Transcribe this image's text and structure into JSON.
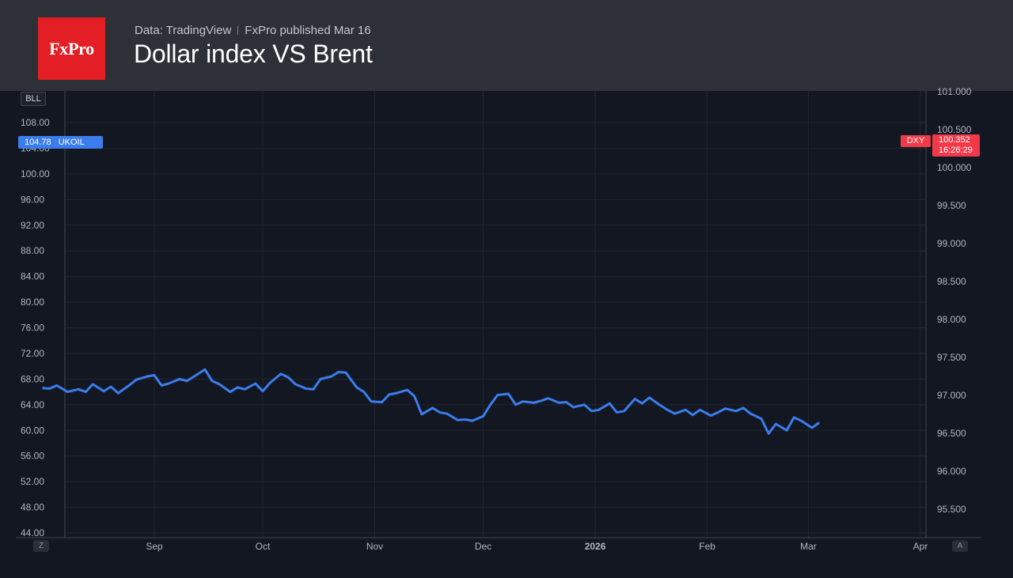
{
  "header": {
    "logo_text": "FxPro",
    "source": "Data: TradingView",
    "published": "FxPro published Mar 16",
    "title": "Dollar index VS Brent"
  },
  "badges": {
    "bll": "BLL",
    "z": "Z",
    "a": "A",
    "ukoil_price": "104.78",
    "ukoil_label": "UKOIL",
    "dxy_label": "DXY",
    "dxy_price": "100.352",
    "dxy_countdown": "16:26:29"
  },
  "colors": {
    "background": "#131722",
    "header_bg": "#2e3038",
    "logo_red": "#e31e24",
    "ukoil_blue": "#3b7ded",
    "dxy_red": "#f03a4a",
    "grid": "#232733"
  },
  "chart_data": {
    "type": "line",
    "date_range": [
      "2025-08-01",
      "2026-03-16"
    ],
    "x_ticks": [
      {
        "label": "Sep",
        "date": "2025-09-01"
      },
      {
        "label": "Oct",
        "date": "2025-10-01"
      },
      {
        "label": "Nov",
        "date": "2025-11-01"
      },
      {
        "label": "Dec",
        "date": "2025-12-01"
      },
      {
        "label": "2026",
        "date": "2026-01-01",
        "bold": true
      },
      {
        "label": "Feb",
        "date": "2026-02-01"
      },
      {
        "label": "Mar",
        "date": "2026-03-01"
      },
      {
        "label": "Apr",
        "date": "2026-04-01"
      }
    ],
    "left_axis": {
      "ticks": [
        "44.00",
        "48.00",
        "52.00",
        "56.00",
        "60.00",
        "64.00",
        "68.00",
        "72.00",
        "76.00",
        "80.00",
        "84.00",
        "88.00",
        "92.00",
        "96.00",
        "100.00",
        "104.00",
        "108.00"
      ],
      "range": [
        44,
        108
      ]
    },
    "right_axis": {
      "ticks": [
        "95.500",
        "96.000",
        "96.500",
        "97.000",
        "97.500",
        "98.000",
        "98.500",
        "99.000",
        "99.500",
        "100.000",
        "100.500",
        "101.000"
      ],
      "range": [
        95.5,
        101.0
      ]
    },
    "series": [
      {
        "name": "UKOIL",
        "axis": "left",
        "color": "#3b7ded",
        "points": [
          [
            "2025-08-01",
            66.6
          ],
          [
            "2025-08-03",
            66.5
          ],
          [
            "2025-08-05",
            67.0
          ],
          [
            "2025-08-08",
            66.0
          ],
          [
            "2025-08-11",
            66.4
          ],
          [
            "2025-08-13",
            66.0
          ],
          [
            "2025-08-15",
            67.2
          ],
          [
            "2025-08-18",
            66.1
          ],
          [
            "2025-08-20",
            66.8
          ],
          [
            "2025-08-22",
            65.8
          ],
          [
            "2025-08-25",
            67.0
          ],
          [
            "2025-08-27",
            67.9
          ],
          [
            "2025-08-30",
            68.4
          ],
          [
            "2025-09-01",
            68.6
          ],
          [
            "2025-09-03",
            67.0
          ],
          [
            "2025-09-05",
            67.3
          ],
          [
            "2025-09-08",
            68.0
          ],
          [
            "2025-09-10",
            67.7
          ],
          [
            "2025-09-12",
            68.4
          ],
          [
            "2025-09-15",
            69.5
          ],
          [
            "2025-09-17",
            67.7
          ],
          [
            "2025-09-19",
            67.2
          ],
          [
            "2025-09-22",
            66.0
          ],
          [
            "2025-09-24",
            66.7
          ],
          [
            "2025-09-26",
            66.4
          ],
          [
            "2025-09-29",
            67.3
          ],
          [
            "2025-10-01",
            66.1
          ],
          [
            "2025-10-03",
            67.4
          ],
          [
            "2025-10-06",
            68.8
          ],
          [
            "2025-10-08",
            68.3
          ],
          [
            "2025-10-10",
            67.2
          ],
          [
            "2025-10-13",
            66.5
          ],
          [
            "2025-10-15",
            66.4
          ],
          [
            "2025-10-17",
            68.0
          ],
          [
            "2025-10-20",
            68.4
          ],
          [
            "2025-10-22",
            69.1
          ],
          [
            "2025-10-24",
            69.0
          ],
          [
            "2025-10-27",
            66.7
          ],
          [
            "2025-10-29",
            66.0
          ],
          [
            "2025-10-31",
            64.5
          ],
          [
            "2025-11-03",
            64.4
          ],
          [
            "2025-11-05",
            65.6
          ],
          [
            "2025-11-07",
            65.8
          ],
          [
            "2025-11-10",
            66.3
          ],
          [
            "2025-11-12",
            65.3
          ],
          [
            "2025-11-14",
            62.5
          ],
          [
            "2025-11-17",
            63.5
          ],
          [
            "2025-11-19",
            62.8
          ],
          [
            "2025-11-21",
            62.6
          ],
          [
            "2025-11-24",
            61.6
          ],
          [
            "2025-11-26",
            61.7
          ],
          [
            "2025-11-28",
            61.5
          ],
          [
            "2025-12-01",
            62.2
          ],
          [
            "2025-12-03",
            64.0
          ],
          [
            "2025-12-05",
            65.5
          ],
          [
            "2025-12-08",
            65.7
          ],
          [
            "2025-12-10",
            64.0
          ],
          [
            "2025-12-12",
            64.5
          ],
          [
            "2025-12-15",
            64.3
          ],
          [
            "2025-12-17",
            64.6
          ],
          [
            "2025-12-19",
            65.0
          ],
          [
            "2025-12-22",
            64.3
          ],
          [
            "2025-12-24",
            64.4
          ],
          [
            "2025-12-26",
            63.6
          ],
          [
            "2025-12-29",
            64.0
          ],
          [
            "2025-12-31",
            63.0
          ],
          [
            "2026-01-02",
            63.2
          ],
          [
            "2026-01-05",
            64.2
          ],
          [
            "2026-01-07",
            62.8
          ],
          [
            "2026-01-09",
            63.0
          ],
          [
            "2026-01-12",
            64.9
          ],
          [
            "2026-01-14",
            64.2
          ],
          [
            "2026-01-16",
            65.1
          ],
          [
            "2026-01-19",
            63.9
          ],
          [
            "2026-01-21",
            63.2
          ],
          [
            "2026-01-23",
            62.6
          ],
          [
            "2026-01-26",
            63.2
          ],
          [
            "2026-01-28",
            62.4
          ],
          [
            "2026-01-30",
            63.2
          ],
          [
            "2026-02-02",
            62.3
          ],
          [
            "2026-02-04",
            62.8
          ],
          [
            "2026-02-06",
            63.4
          ],
          [
            "2026-02-09",
            63.0
          ],
          [
            "2026-02-11",
            63.5
          ],
          [
            "2026-02-13",
            62.6
          ],
          [
            "2026-02-16",
            61.8
          ],
          [
            "2026-02-18",
            59.5
          ],
          [
            "2026-02-20",
            61.0
          ],
          [
            "2026-02-23",
            60.0
          ],
          [
            "2026-02-25",
            62.0
          ],
          [
            "2026-02-27",
            61.5
          ],
          [
            "2026-03-02",
            60.4
          ],
          [
            "2026-03-04",
            61.2
          ]
        ]
      }
    ]
  }
}
